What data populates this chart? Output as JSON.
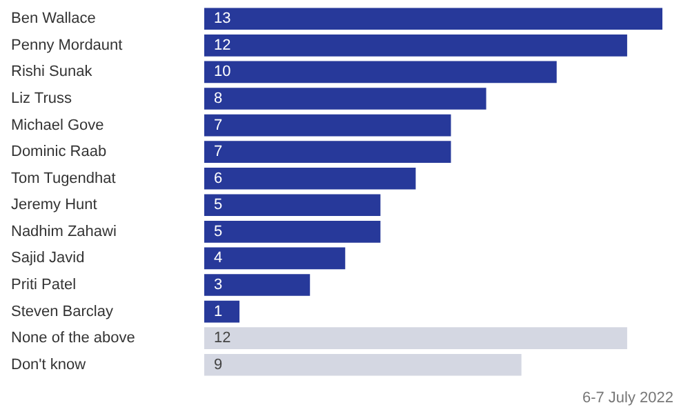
{
  "chart_data": {
    "type": "bar",
    "orientation": "horizontal",
    "data_labels": true,
    "categories": [
      "Ben Wallace",
      "Penny Mordaunt",
      "Rishi Sunak",
      "Liz Truss",
      "Michael Gove",
      "Dominic Raab",
      "Tom Tugendhat",
      "Jeremy Hunt",
      "Nadhim Zahawi",
      "Sajid Javid",
      "Priti Patel",
      "Steven Barclay",
      "None of the above",
      "Don't know"
    ],
    "values": [
      13,
      12,
      10,
      8,
      7,
      7,
      6,
      5,
      5,
      4,
      3,
      1,
      12,
      9
    ],
    "colors": [
      "#27399a",
      "#27399a",
      "#27399a",
      "#27399a",
      "#27399a",
      "#27399a",
      "#27399a",
      "#27399a",
      "#27399a",
      "#27399a",
      "#27399a",
      "#27399a",
      "#d4d7e2",
      "#d4d7e2"
    ],
    "xlim": [
      0,
      13
    ],
    "annotations": [
      "6-7 July 2022"
    ]
  }
}
